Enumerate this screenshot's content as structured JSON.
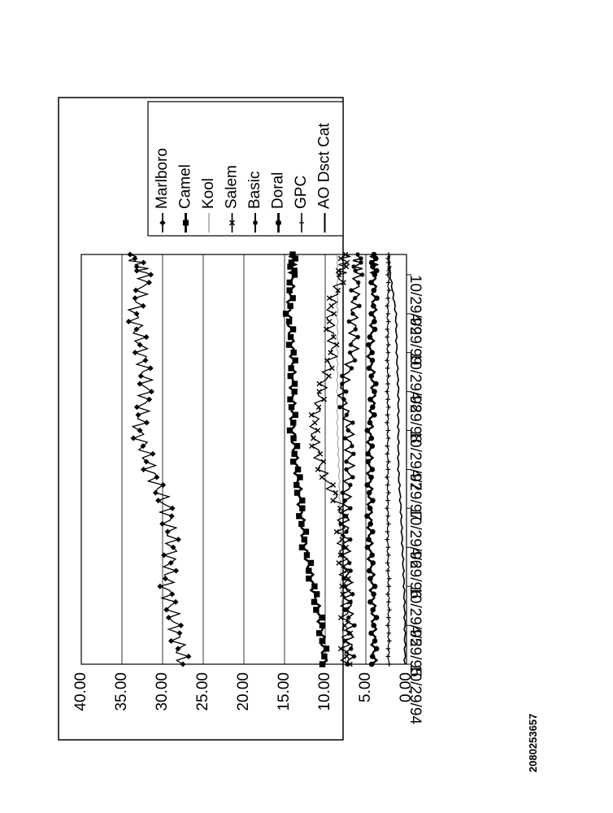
{
  "document": {
    "id": "2080253657"
  },
  "chart_data": {
    "type": "line",
    "orientation": "rotated-90-ccw",
    "ylim": [
      0,
      40
    ],
    "yticks": [
      "0.00",
      "5.00",
      "10.00",
      "15.00",
      "20.00",
      "25.00",
      "30.00",
      "35.00",
      "40.00"
    ],
    "xticks": [
      "10/29/94",
      "4/29/95",
      "10/29/95",
      "4/29/96",
      "10/29/96",
      "4/29/97",
      "10/29/97",
      "4/29/98",
      "10/29/98",
      "4/29/99",
      "10/29/99"
    ],
    "grid": true,
    "legend": "right",
    "x": [
      "10/29/94",
      "4/29/95",
      "10/29/95",
      "4/29/96",
      "10/29/96",
      "4/29/97",
      "10/29/97",
      "4/29/98",
      "10/29/98",
      "4/29/99",
      "10/29/99",
      "2/1/00"
    ],
    "series": [
      {
        "name": "Marlboro",
        "values": [
          27.5,
          28.5,
          29.5,
          28.8,
          29.5,
          31.5,
          33.0,
          32.0,
          32.5,
          33.5,
          32.0,
          34.0
        ]
      },
      {
        "name": "Camel",
        "values": [
          10.0,
          10.5,
          11.5,
          12.5,
          13.0,
          13.5,
          14.0,
          14.0,
          14.0,
          14.5,
          14.0,
          14.0
        ]
      },
      {
        "name": "Kool",
        "values": [
          7.5,
          7.8,
          8.0,
          8.0,
          8.2,
          8.3,
          8.5,
          8.5,
          8.5,
          8.5,
          8.5,
          8.5
        ]
      },
      {
        "name": "Salem",
        "values": [
          7.5,
          7.5,
          7.5,
          8.0,
          8.0,
          10.5,
          11.5,
          10.5,
          9.0,
          9.5,
          8.0,
          7.5
        ]
      },
      {
        "name": "Basic",
        "values": [
          7.0,
          7.0,
          7.2,
          7.5,
          7.5,
          7.0,
          7.0,
          8.0,
          6.5,
          6.5,
          6.0,
          6.0
        ]
      },
      {
        "name": "Doral",
        "values": [
          4.0,
          4.0,
          4.2,
          4.5,
          4.5,
          4.5,
          4.5,
          4.0,
          4.5,
          4.0,
          4.0,
          4.0
        ]
      },
      {
        "name": "GPC",
        "values": [
          2.2,
          2.2,
          2.2,
          2.3,
          2.3,
          2.3,
          2.3,
          2.3,
          2.3,
          2.3,
          2.2,
          2.2
        ]
      },
      {
        "name": "AO Dsct Cat",
        "values": [
          0.2,
          0.2,
          0.3,
          0.5,
          0.7,
          1.0,
          1.0,
          1.0,
          1.2,
          1.3,
          2.0,
          2.2
        ]
      }
    ]
  },
  "style": {
    "line_color": "#000000",
    "grid_color": "#000000",
    "background": "#ffffff"
  }
}
